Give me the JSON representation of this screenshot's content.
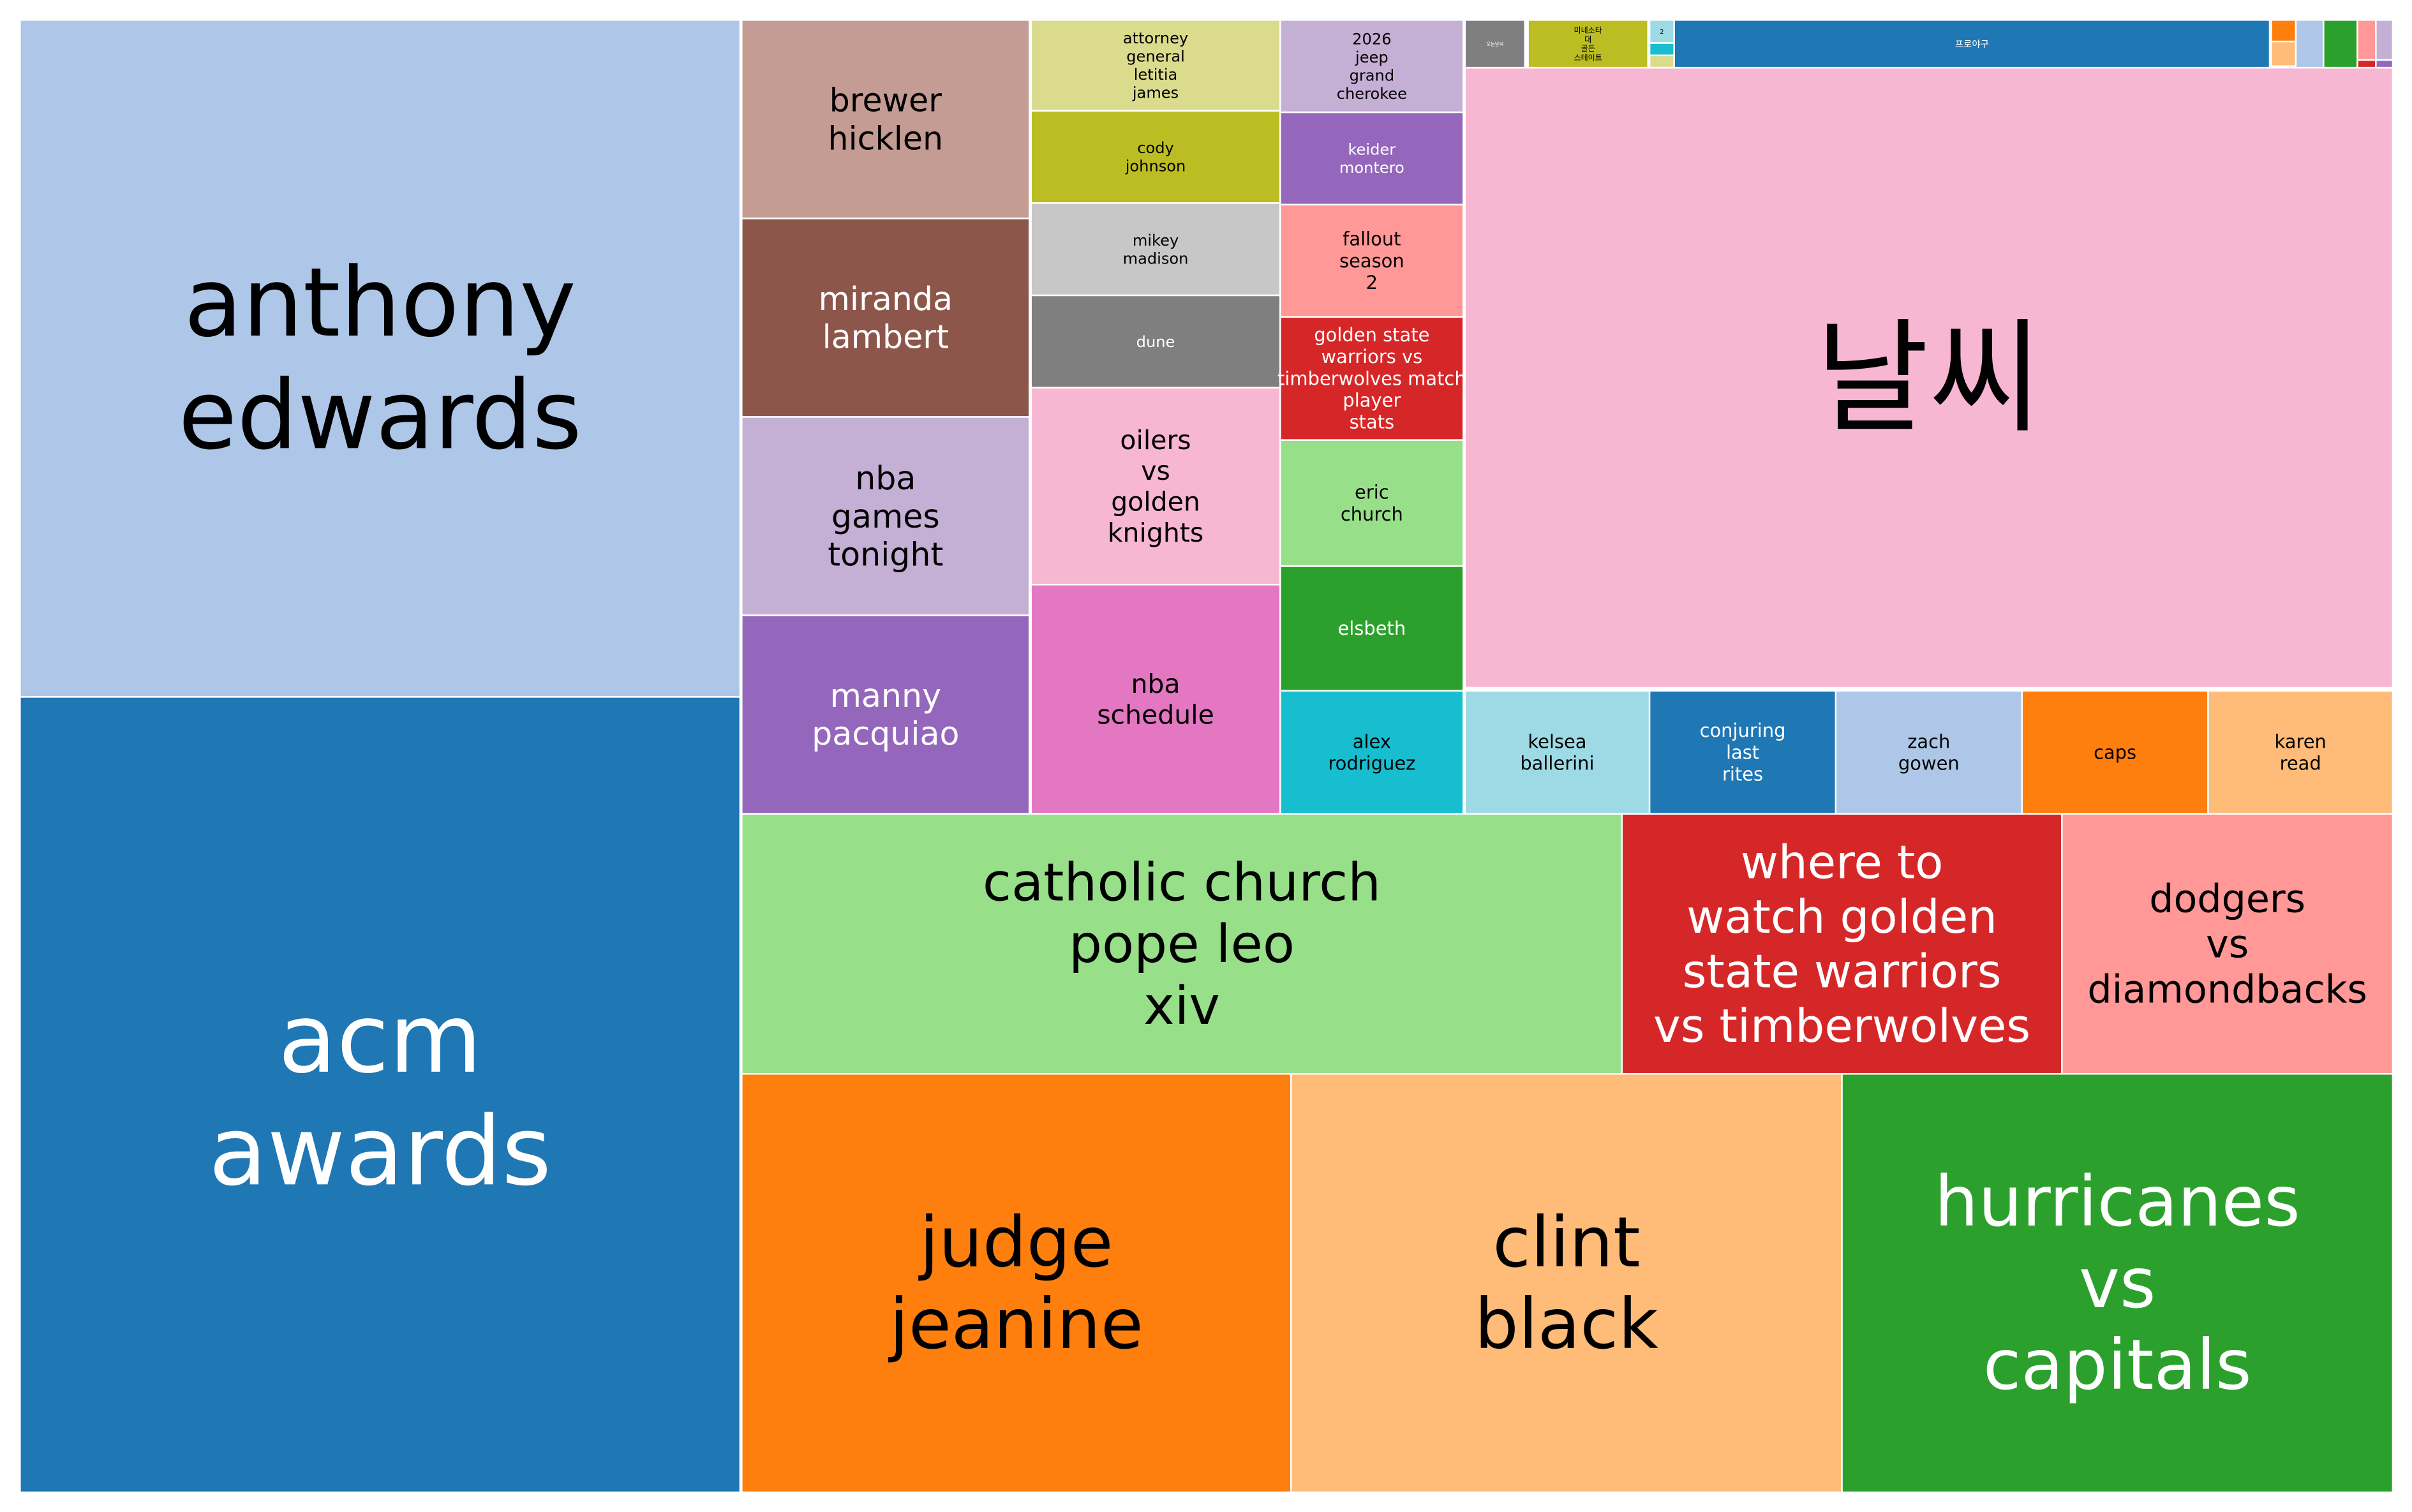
{
  "chart_data": {
    "type": "treemap",
    "title": "",
    "tiles": [
      {
        "label": "anthony\nedwards",
        "color": "#aec7e8",
        "dark": false
      },
      {
        "label": "acm\nawards",
        "color": "#1f77b4",
        "dark": true
      },
      {
        "label": "brewer\nhicklen",
        "color": "#c49c94",
        "dark": false
      },
      {
        "label": "miranda\nlambert",
        "color": "#8c564b",
        "dark": true
      },
      {
        "label": "nba\ngames\ntonight",
        "color": "#c5b0d5",
        "dark": false
      },
      {
        "label": "manny\npacquiao",
        "color": "#9467bd",
        "dark": true
      },
      {
        "label": "attorney\ngeneral\nletitia\njames",
        "color": "#dbdb8d",
        "dark": false
      },
      {
        "label": "cody\njohnson",
        "color": "#bcbd22",
        "dark": false
      },
      {
        "label": "mikey\nmadison",
        "color": "#c7c7c7",
        "dark": false
      },
      {
        "label": "dune",
        "color": "#7f7f7f",
        "dark": true
      },
      {
        "label": "oilers\nvs\ngolden\nknights",
        "color": "#f7b6d2",
        "dark": false
      },
      {
        "label": "nba\nschedule",
        "color": "#e377c2",
        "dark": false
      },
      {
        "label": "2026\njeep\ngrand\ncherokee",
        "color": "#c5b0d5",
        "dark": false
      },
      {
        "label": "keider\nmontero",
        "color": "#9467bd",
        "dark": true
      },
      {
        "label": "fallout\nseason\n2",
        "color": "#ff9896",
        "dark": false
      },
      {
        "label": "golden state\nwarriors vs\ntimberwolves match\nplayer\nstats",
        "color": "#d62728",
        "dark": true
      },
      {
        "label": "eric\nchurch",
        "color": "#98df8a",
        "dark": false
      },
      {
        "label": "elsbeth",
        "color": "#2ca02c",
        "dark": true
      },
      {
        "label": "날씨",
        "color": "#f7b6d2",
        "dark": false
      },
      {
        "label": "오늘날씨",
        "color": "#7f7f7f",
        "dark": true
      },
      {
        "label": "미네소타\n대\n골든\n스테이트",
        "color": "#bcbd22",
        "dark": false
      },
      {
        "label": "2",
        "color": "#9edae5",
        "dark": false
      },
      {
        "label": "",
        "color": "#17becf",
        "dark": false
      },
      {
        "label": "",
        "color": "#dbdb8d",
        "dark": false
      },
      {
        "label": "프로야구",
        "color": "#1f77b4",
        "dark": true
      },
      {
        "label": "",
        "color": "#ff7f0e",
        "dark": false
      },
      {
        "label": "",
        "color": "#ffbb78",
        "dark": false
      },
      {
        "label": "",
        "color": "#aec7e8",
        "dark": false
      },
      {
        "label": "",
        "color": "#2ca02c",
        "dark": true
      },
      {
        "label": "",
        "color": "#ff9896",
        "dark": false
      },
      {
        "label": "",
        "color": "#d62728",
        "dark": true
      },
      {
        "label": "",
        "color": "#c5b0d5",
        "dark": false
      },
      {
        "label": "",
        "color": "#9467bd",
        "dark": true
      },
      {
        "label": "alex\nrodriguez",
        "color": "#17becf",
        "dark": false
      },
      {
        "label": "kelsea\nballerini",
        "color": "#9edae5",
        "dark": false
      },
      {
        "label": "conjuring\nlast\nrites",
        "color": "#1f77b4",
        "dark": true
      },
      {
        "label": "zach\ngowen",
        "color": "#aec7e8",
        "dark": false
      },
      {
        "label": "caps",
        "color": "#ff7f0e",
        "dark": false
      },
      {
        "label": "karen\nread",
        "color": "#ffbb78",
        "dark": false
      },
      {
        "label": "catholic church\npope leo\nxiv",
        "color": "#98df8a",
        "dark": false
      },
      {
        "label": "where to\nwatch golden\nstate warriors\nvs timberwolves",
        "color": "#d62728",
        "dark": true
      },
      {
        "label": "dodgers\nvs\ndiamondbacks",
        "color": "#ff9896",
        "dark": false
      },
      {
        "label": "judge\njeanine",
        "color": "#ff7f0e",
        "dark": false
      },
      {
        "label": "clint\nblack",
        "color": "#ffbb78",
        "dark": false
      },
      {
        "label": "hurricanes\nvs\ncapitals",
        "color": "#2ca02c",
        "dark": true
      }
    ]
  }
}
